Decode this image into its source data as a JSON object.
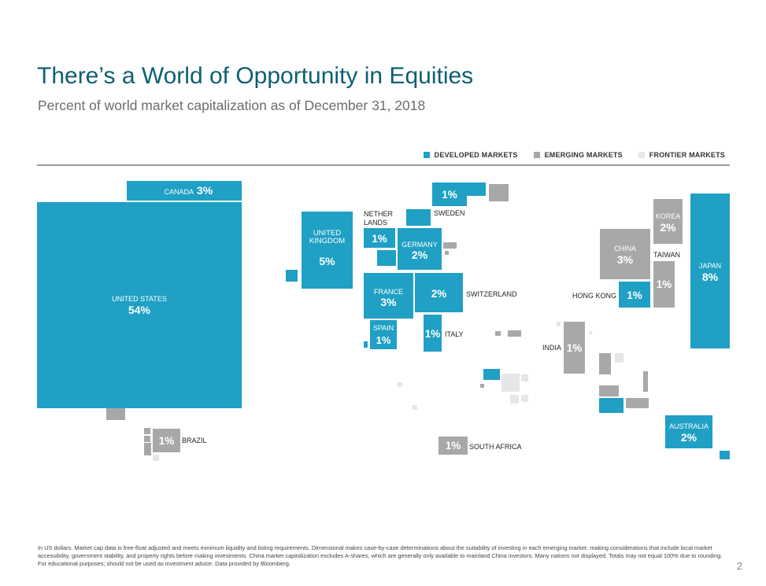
{
  "title": "There’s a World of Opportunity in Equities",
  "subtitle": "Percent of world market capitalization as of December 31, 2018",
  "legend": [
    {
      "label": "DEVELOPED MARKETS",
      "color": "#1fa0c4"
    },
    {
      "label": "EMERGING MARKETS",
      "color": "#a7a8aa"
    },
    {
      "label": "FRONTIER MARKETS",
      "color": "#e5e6e7"
    }
  ],
  "footnote": "In US dollars. Market cap data is free-float adjusted and meets minimum liquidity and listing requirements. Dimensional makes case-by-case determinations about the suitability of investing in each emerging market, making considerations that include local market accessibility, government stability, and property rights before making investments. China market capitalization excludes A-shares, which are generally only available to mainland China investors. Many nations not displayed. Totals may not equal 100% due to rounding. For educational purposes; should not be used as investment advice. Data provided by Bloomberg.",
  "page_number": "2",
  "colors": {
    "developed": "#1fa0c4",
    "emerging": "#a7a8aa",
    "frontier": "#e5e6e7",
    "title": "#0d5f73"
  },
  "chart_data": {
    "type": "treemap-cartogram",
    "title": "There’s a World of Opportunity in Equities",
    "subtitle": "Percent of world market capitalization as of December 31, 2018",
    "unit": "%",
    "labeled": [
      {
        "name": "United States",
        "label": [
          "UNITED STATES"
        ],
        "value": 54,
        "value_label": "54%",
        "category": "developed"
      },
      {
        "name": "Canada",
        "label": [
          "CANADA"
        ],
        "value": 3,
        "value_label": "3%",
        "category": "developed"
      },
      {
        "name": "United Kingdom",
        "label": [
          "UNITED",
          "KINGDOM"
        ],
        "value": 5,
        "value_label": "5%",
        "category": "developed"
      },
      {
        "name": "Netherlands",
        "label": [
          "NETHER",
          "LANDS"
        ],
        "value": 1,
        "value_label": "1%",
        "category": "developed"
      },
      {
        "name": "Sweden",
        "label": [
          "SWEDEN"
        ],
        "value": 1,
        "value_label": "1%",
        "category": "developed"
      },
      {
        "name": "Germany",
        "label": [
          "GERMANY"
        ],
        "value": 2,
        "value_label": "2%",
        "category": "developed"
      },
      {
        "name": "France",
        "label": [
          "FRANCE"
        ],
        "value": 3,
        "value_label": "3%",
        "category": "developed"
      },
      {
        "name": "Switzerland",
        "label": [
          "SWITZERLAND"
        ],
        "value": 2,
        "value_label": "2%",
        "category": "developed"
      },
      {
        "name": "Spain",
        "label": [
          "SPAIN"
        ],
        "value": 1,
        "value_label": "1%",
        "category": "developed"
      },
      {
        "name": "Italy",
        "label": [
          "ITALY"
        ],
        "value": 1,
        "value_label": "1%",
        "category": "developed"
      },
      {
        "name": "Korea",
        "label": [
          "KOREA"
        ],
        "value": 2,
        "value_label": "2%",
        "category": "emerging"
      },
      {
        "name": "China",
        "label": [
          "CHINA"
        ],
        "value": 3,
        "value_label": "3%",
        "category": "emerging"
      },
      {
        "name": "Taiwan",
        "label": [
          "TAIWAN"
        ],
        "value": 1,
        "value_label": "1%",
        "category": "emerging"
      },
      {
        "name": "Japan",
        "label": [
          "JAPAN"
        ],
        "value": 8,
        "value_label": "8%",
        "category": "developed"
      },
      {
        "name": "Hong Kong",
        "label": [
          "HONG KONG"
        ],
        "value": 1,
        "value_label": "1%",
        "category": "developed"
      },
      {
        "name": "India",
        "label": [
          "INDIA"
        ],
        "value": 1,
        "value_label": "1%",
        "category": "emerging"
      },
      {
        "name": "Brazil",
        "label": [
          "BRAZIL"
        ],
        "value": 1,
        "value_label": "1%",
        "category": "emerging"
      },
      {
        "name": "South Africa",
        "label": [
          "SOUTH AFRICA"
        ],
        "value": 1,
        "value_label": "1%",
        "category": "emerging"
      },
      {
        "name": "Australia",
        "label": [
          "AUSTRALIA"
        ],
        "value": 2,
        "value_label": "2%",
        "category": "developed"
      }
    ]
  }
}
